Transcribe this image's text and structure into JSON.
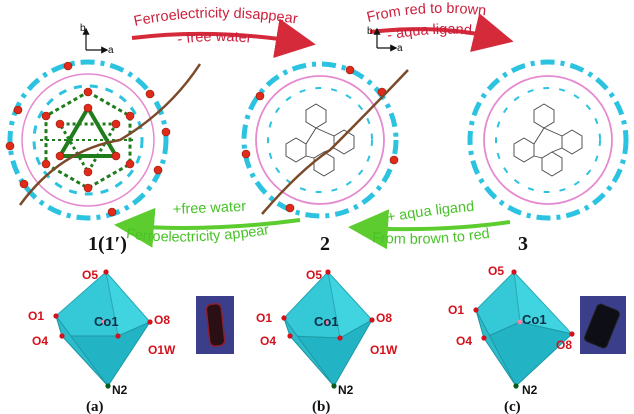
{
  "arrows": {
    "top_left_1": "Ferroelectricity disappear",
    "top_left_2": "- free water",
    "top_right_1": "From red to brown",
    "top_right_2": "- aqua ligand",
    "bottom_left_1": "+free water",
    "bottom_left_2": "Ferroelectricity appear",
    "bottom_right_1": "+ aqua ligand",
    "bottom_right_2": "From brown to red"
  },
  "compounds": {
    "c1": "1(1′)",
    "c2": "2",
    "c3": "3"
  },
  "axes": {
    "a": "a",
    "b": "b"
  },
  "polyhedra": {
    "a": {
      "top": "O5",
      "left_upper": "O1",
      "left_lower": "O4",
      "center": "Co1",
      "right_upper": "O8",
      "right_lower": "O1W",
      "bottom": "N2",
      "panel": "(a)"
    },
    "b": {
      "top": "O5",
      "left_upper": "O1",
      "left_lower": "O4",
      "center": "Co1",
      "right_upper": "O8",
      "right_lower": "O1W",
      "bottom": "N2",
      "panel": "(b)"
    },
    "c": {
      "top": "O5",
      "left_upper": "O1",
      "left_lower": "O4",
      "center": "Co1",
      "right_upper": "O8",
      "bottom": "N2",
      "panel": "(c)"
    }
  },
  "colors": {
    "red_label": "#cc1f3c",
    "green_label": "#49c229",
    "framework_cyan": "#2bc3e0",
    "framework_pink": "#e58ad0",
    "water_red": "#e02a1a",
    "hbond_green": "#1f7d1c",
    "polarization_brown": "#7a4a2a",
    "octahedron": "#3fd4e0",
    "crystal_red": "#3a1424",
    "crystal_dark": "#101018"
  }
}
